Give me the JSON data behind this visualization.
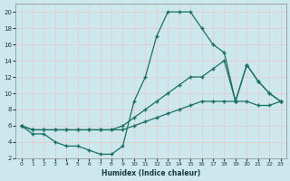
{
  "xlabel": "Humidex (Indice chaleur)",
  "bg_color": "#cce8ed",
  "grid_color": "#b0d4d8",
  "line_color": "#1a7060",
  "xlim": [
    0,
    23
  ],
  "ylim": [
    2,
    21
  ],
  "xticks": [
    0,
    1,
    2,
    3,
    4,
    5,
    6,
    7,
    8,
    9,
    10,
    11,
    12,
    13,
    14,
    15,
    16,
    17,
    18,
    19,
    20,
    21,
    22,
    23
  ],
  "yticks": [
    2,
    4,
    6,
    8,
    10,
    12,
    14,
    16,
    18,
    20
  ],
  "line1_x": [
    0,
    1,
    2,
    3,
    4,
    5,
    6,
    7,
    8,
    9,
    10,
    11,
    12,
    13,
    14,
    15,
    16,
    17,
    18,
    19,
    20,
    21,
    22,
    23
  ],
  "line1_y": [
    6,
    5,
    5,
    4,
    3.5,
    3.5,
    3,
    2.5,
    2.5,
    3.5,
    9,
    12,
    17,
    20,
    20,
    20,
    18,
    16,
    15,
    9,
    13.5,
    11.5,
    10,
    9
  ],
  "line2_x": [
    0,
    1,
    2,
    3,
    4,
    5,
    6,
    7,
    8,
    9,
    10,
    11,
    12,
    13,
    14,
    15,
    16,
    17,
    18,
    19,
    20,
    21,
    22,
    23
  ],
  "line2_y": [
    6,
    5.5,
    5.5,
    5.5,
    5.5,
    5.5,
    5.5,
    5.5,
    5.5,
    6,
    7,
    8,
    9,
    10,
    11,
    12,
    12,
    13,
    14,
    9,
    13.5,
    11.5,
    10,
    9
  ],
  "line3_x": [
    0,
    1,
    2,
    3,
    4,
    5,
    6,
    7,
    8,
    9,
    10,
    11,
    12,
    13,
    14,
    15,
    16,
    17,
    18,
    19,
    20,
    21,
    22,
    23
  ],
  "line3_y": [
    6,
    5.5,
    5.5,
    5.5,
    5.5,
    5.5,
    5.5,
    5.5,
    5.5,
    5.5,
    6,
    6.5,
    7,
    7.5,
    8,
    8.5,
    9,
    9,
    9,
    9,
    9,
    8.5,
    8.5,
    9
  ]
}
